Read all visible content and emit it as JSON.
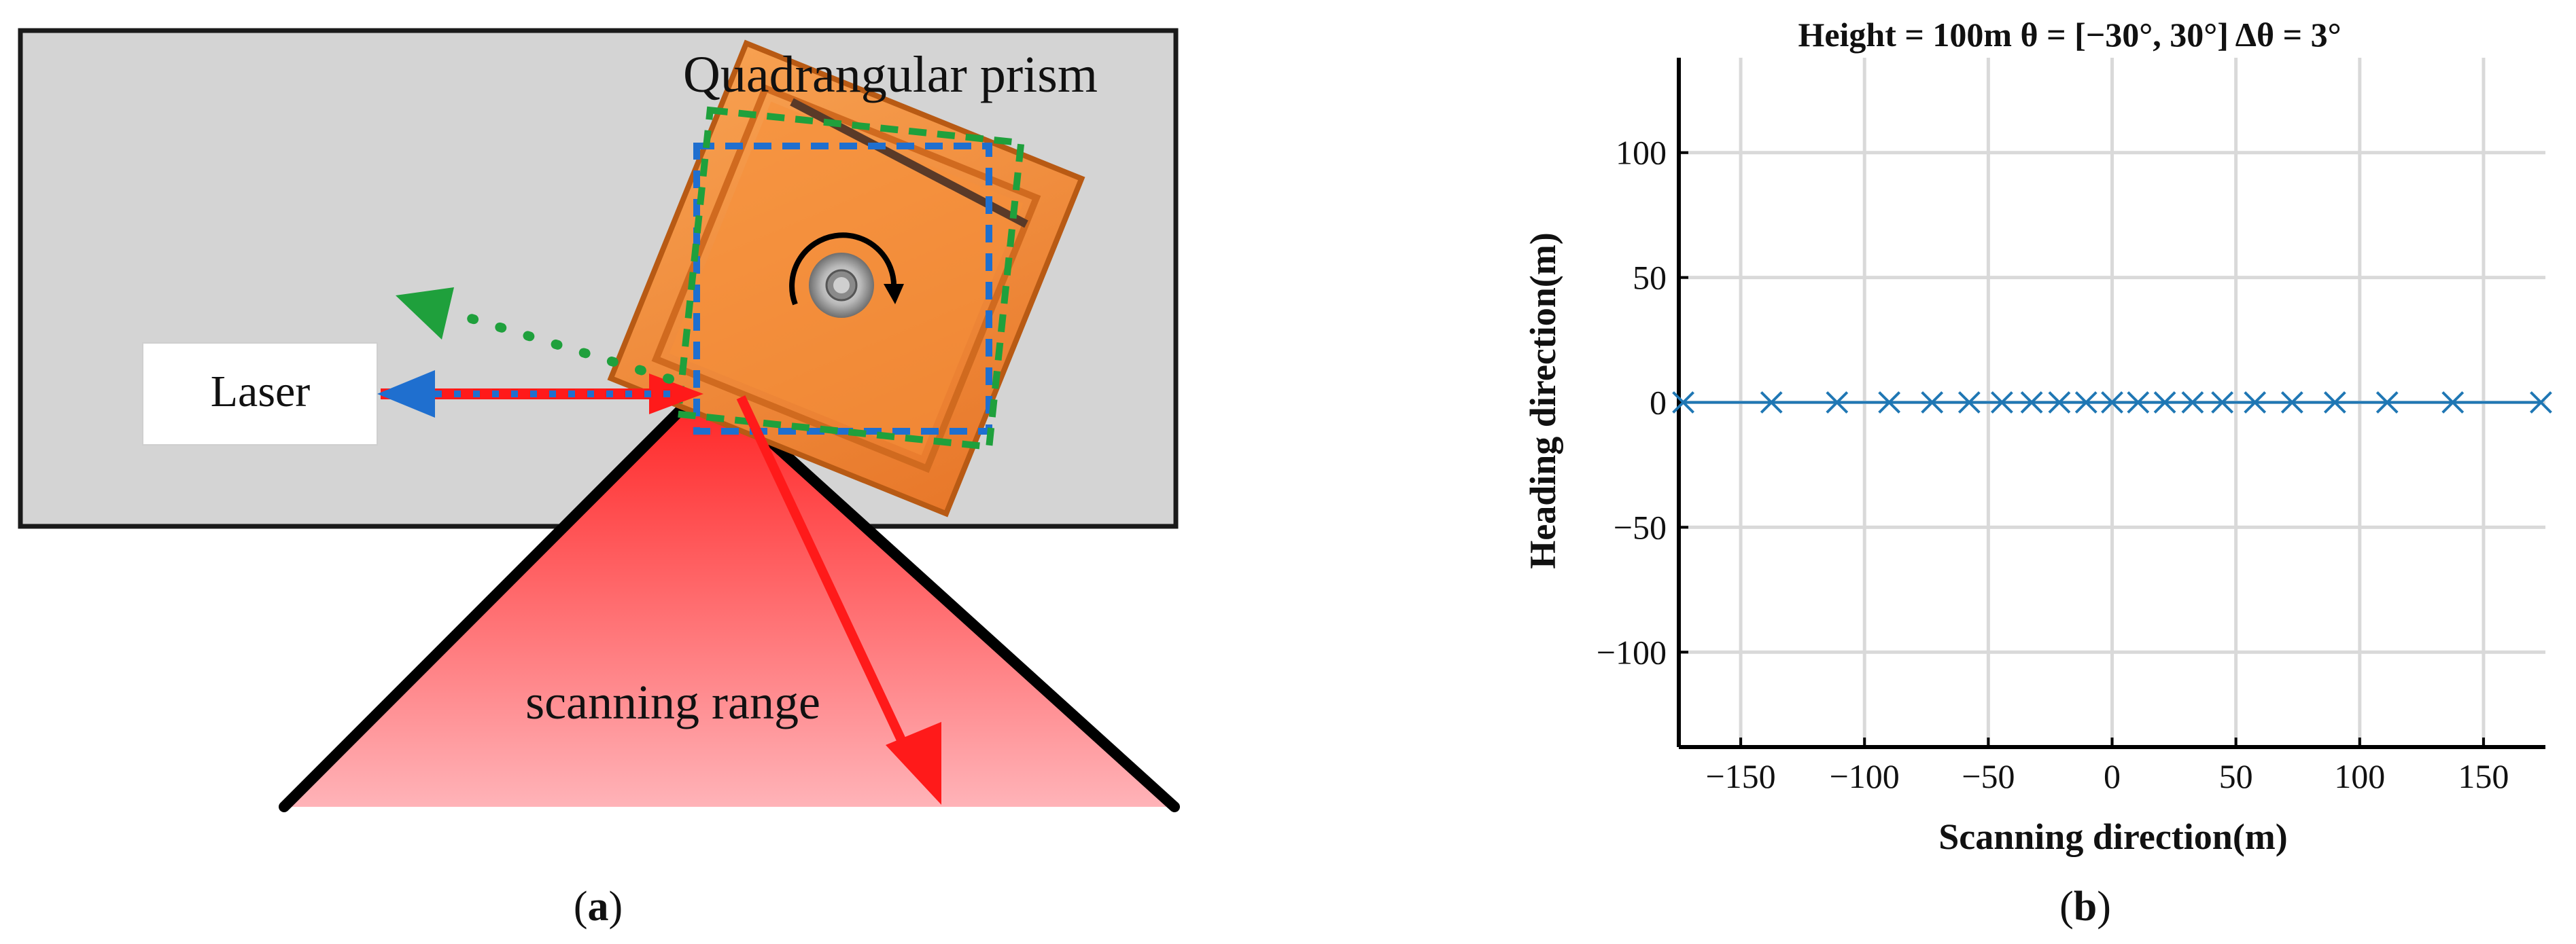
{
  "panel_a": {
    "prism_label": "Quadrangular prism",
    "laser_label": "Laser",
    "scanning_label": "scanning range",
    "caption_open": "(",
    "caption_letter": "a",
    "caption_close": ")",
    "colors": {
      "prism_face": "#f28a2e",
      "prism_dark": "#c8641a",
      "panel_bg": "#d4d4d4",
      "beam_red": "#ff1a1a",
      "beam_blue": "#1f6fcf",
      "green_dash": "#1fa03c",
      "blue_dash": "#1f6fcf"
    }
  },
  "panel_b": {
    "caption_open": "(",
    "caption_letter": "b",
    "caption_close": ")",
    "colors": {
      "series": "#1f77b4",
      "grid": "#d9d9d9"
    }
  },
  "chart_data": {
    "type": "scatter",
    "title": "Height = 100m   θ = [−30°, 30°]   Δθ = 3°",
    "xlabel": "Scanning direction(m)",
    "ylabel": "Heading direction(m)",
    "xlim": [
      -175,
      175
    ],
    "ylim": [
      -138,
      138
    ],
    "xticks": [
      -150,
      -100,
      -50,
      0,
      50,
      100,
      150
    ],
    "yticks": [
      -100,
      -50,
      0,
      50,
      100
    ],
    "xtick_labels": [
      "−150",
      "−100",
      "−50",
      "0",
      "50",
      "100",
      "150"
    ],
    "ytick_labels": [
      "−100",
      "−50",
      "0",
      "50",
      "100"
    ],
    "grid": true,
    "marker": "x",
    "connected_line": true,
    "series": [
      {
        "x": [
          -173.2,
          -137.6,
          -111.1,
          -90.0,
          -72.7,
          -57.7,
          -44.5,
          -32.5,
          -21.3,
          -10.5,
          0,
          10.5,
          21.3,
          32.5,
          44.5,
          57.7,
          72.7,
          90.0,
          111.1,
          137.6,
          173.2
        ],
        "y": [
          0,
          0,
          0,
          0,
          0,
          0,
          0,
          0,
          0,
          0,
          0,
          0,
          0,
          0,
          0,
          0,
          0,
          0,
          0,
          0,
          0
        ]
      }
    ]
  }
}
